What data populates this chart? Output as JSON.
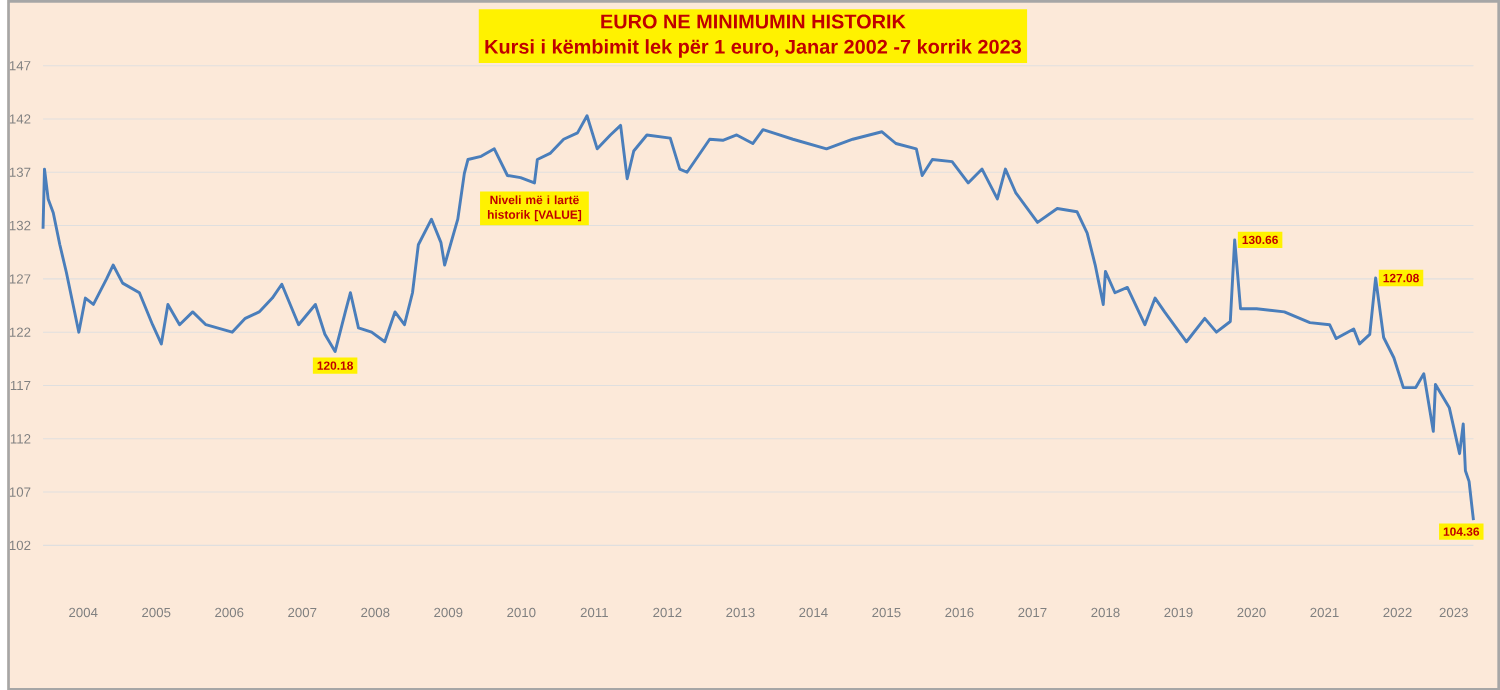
{
  "chart_data": {
    "type": "line",
    "title": "EURO NE MINIMUMIN HISTORIK",
    "subtitle": "Kursi i këmbimit lek për 1 euro, Janar 2002 -7 korrik 2023",
    "color": "#4a7ebb",
    "grid": "y",
    "x": [
      2003.95,
      2003.97,
      2004.02,
      2004.09,
      2004.18,
      2004.27,
      2004.44,
      2004.53,
      2004.64,
      2004.82,
      2004.91,
      2005.04,
      2005.27,
      2005.45,
      2005.57,
      2005.66,
      2005.82,
      2006.0,
      2006.18,
      2006.54,
      2006.72,
      2006.91,
      2007.09,
      2007.22,
      2007.45,
      2007.68,
      2007.81,
      2007.95,
      2008.09,
      2008.16,
      2008.27,
      2008.45,
      2008.63,
      2008.77,
      2008.9,
      2009.01,
      2009.09,
      2009.27,
      2009.4,
      2009.45,
      2009.63,
      2009.72,
      2009.77,
      2009.95,
      2010.13,
      2010.31,
      2010.49,
      2010.68,
      2010.72,
      2010.9,
      2011.08,
      2011.27,
      2011.4,
      2011.54,
      2011.72,
      2011.86,
      2011.95,
      2012.04,
      2012.22,
      2012.54,
      2012.67,
      2012.77,
      2013.08,
      2013.26,
      2013.45,
      2013.67,
      2013.81,
      2013.95,
      2014.22,
      2014.68,
      2015.04,
      2015.44,
      2015.63,
      2015.91,
      2015.99,
      2016.13,
      2016.4,
      2016.62,
      2016.81,
      2017.02,
      2017.13,
      2017.27,
      2017.57,
      2017.84,
      2018.11,
      2018.25,
      2018.36,
      2018.47,
      2018.5,
      2018.63,
      2018.8,
      2019.04,
      2019.18,
      2019.31,
      2019.61,
      2019.86,
      2020.02,
      2020.21,
      2020.27,
      2020.35,
      2020.57,
      2020.95,
      2021.3,
      2021.57,
      2021.66,
      2021.9,
      2021.98,
      2022.12,
      2022.2,
      2022.31,
      2022.45,
      2022.58,
      2022.75,
      2022.86,
      2022.99,
      2023.02,
      2023.21,
      2023.35,
      2023.4,
      2023.43,
      2023.48,
      2023.54
    ],
    "values": [
      131.7,
      137.3,
      134.5,
      133.2,
      130.2,
      127.6,
      122,
      125.2,
      124.6,
      127,
      128.3,
      126.6,
      125.7,
      122.7,
      120.9,
      124.6,
      122.7,
      123.9,
      122.7,
      122,
      123.3,
      123.9,
      125.2,
      126.5,
      122.7,
      124.6,
      121.8,
      120.18,
      123.9,
      125.7,
      122.4,
      122,
      121.1,
      123.9,
      122.7,
      125.7,
      130.2,
      132.6,
      130.4,
      128.3,
      132.6,
      136.9,
      138.2,
      138.5,
      139.2,
      136.7,
      136.5,
      136,
      138.2,
      138.8,
      140.1,
      140.7,
      142.3,
      139.2,
      140.5,
      141.4,
      136.4,
      139,
      140.5,
      140.2,
      137.3,
      137,
      140.1,
      140,
      140.5,
      139.7,
      141,
      140.7,
      140.1,
      139.2,
      140.1,
      140.8,
      139.7,
      139.2,
      136.7,
      138.2,
      138,
      136,
      137.3,
      134.5,
      137.3,
      135.1,
      132.3,
      133.6,
      133.3,
      131.3,
      128.3,
      124.6,
      127.7,
      125.7,
      126.2,
      122.7,
      125.2,
      123.9,
      121.1,
      123.3,
      122,
      123,
      130.66,
      124.2,
      124.2,
      123.9,
      122.9,
      122.7,
      121.4,
      122.3,
      120.9,
      121.8,
      127.08,
      121.5,
      119.6,
      116.8,
      116.8,
      118.1,
      112.7,
      117.1,
      114.9,
      110.6,
      113.4,
      109,
      108,
      104.36
    ],
    "xlim": [
      2003.95,
      2023.54
    ],
    "ylim": [
      102,
      147
    ],
    "yticks": [
      102,
      107,
      112,
      117,
      122,
      127,
      132,
      137,
      142,
      147
    ],
    "xticks": [
      {
        "value": 2004.5,
        "label": "2004"
      },
      {
        "value": 2005.5,
        "label": "2005"
      },
      {
        "value": 2006.5,
        "label": "2006"
      },
      {
        "value": 2007.5,
        "label": "2007"
      },
      {
        "value": 2008.5,
        "label": "2008"
      },
      {
        "value": 2009.5,
        "label": "2009"
      },
      {
        "value": 2010.5,
        "label": "2010"
      },
      {
        "value": 2011.5,
        "label": "2011"
      },
      {
        "value": 2012.5,
        "label": "2012"
      },
      {
        "value": 2013.5,
        "label": "2013"
      },
      {
        "value": 2014.5,
        "label": "2014"
      },
      {
        "value": 2015.5,
        "label": "2015"
      },
      {
        "value": 2016.5,
        "label": "2016"
      },
      {
        "value": 2017.5,
        "label": "2017"
      },
      {
        "value": 2018.5,
        "label": "2018"
      },
      {
        "value": 2019.5,
        "label": "2019"
      },
      {
        "value": 2020.5,
        "label": "2020"
      },
      {
        "value": 2021.5,
        "label": "2021"
      },
      {
        "value": 2022.5,
        "label": "2022"
      },
      {
        "value": 2023.27,
        "label": "2023"
      }
    ],
    "annotations": [
      {
        "text": "120.18",
        "x": 2007.95,
        "y": 120.18
      },
      {
        "text": "Niveli më i lartë historik [VALUE]",
        "x": 2010.68,
        "y": 136
      },
      {
        "text": "130.66",
        "x": 2020.27,
        "y": 130.66
      },
      {
        "text": "127.08",
        "x": 2022.2,
        "y": 127.08
      },
      {
        "text": "104.36",
        "x": 2023.54,
        "y": 104.36
      }
    ]
  }
}
